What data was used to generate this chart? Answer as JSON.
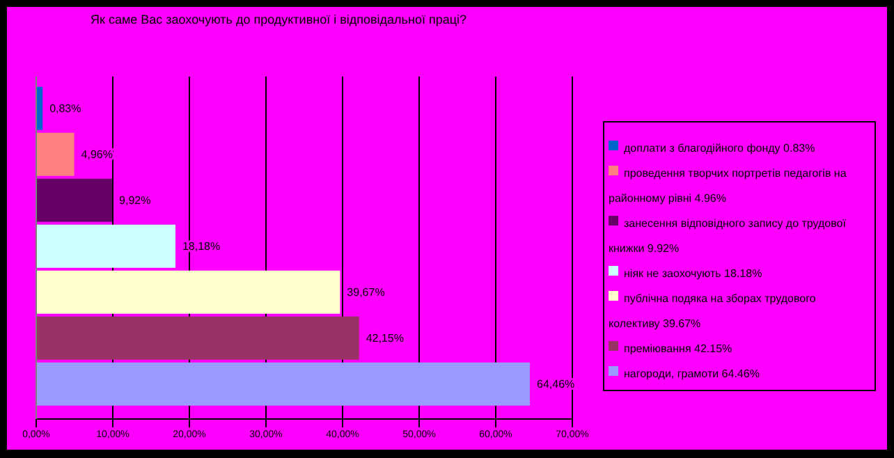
{
  "chart_data": {
    "type": "bar",
    "orientation": "horizontal",
    "title": "Як саме Вас заохочують до продуктивної і відповідальної праці?",
    "categories": [
      null
    ],
    "series": [
      {
        "name": "доплати з благодійного фонду 0.83%",
        "color": "#0066cc",
        "values": [
          0.83
        ],
        "value_labels": [
          "0,83%"
        ]
      },
      {
        "name": "проведення творчих портретів педагогів на районному рівні 4.96%",
        "color": "#ff8080",
        "values": [
          4.96
        ],
        "value_labels": [
          "4,96%"
        ]
      },
      {
        "name": "занесення відповідного запису до трудової книжки 9.92%",
        "color": "#660066",
        "values": [
          9.92
        ],
        "value_labels": [
          "9,92%"
        ]
      },
      {
        "name": "ніяк не заохочують 18.18%",
        "color": "#ccffff",
        "values": [
          18.18
        ],
        "value_labels": [
          "18,18%"
        ]
      },
      {
        "name": "публічна подяка на зборах трудового колективу 39.67%",
        "color": "#ffffcc",
        "values": [
          39.67
        ],
        "value_labels": [
          "39,67%"
        ]
      },
      {
        "name": "преміювання 42.15%",
        "color": "#993366",
        "values": [
          42.15
        ],
        "value_labels": [
          "42,15%"
        ]
      },
      {
        "name": "нагороди, грамоти 64.46%",
        "color": "#9999ff",
        "values": [
          64.46
        ],
        "value_labels": [
          "64,46%"
        ]
      }
    ],
    "xlim": [
      0,
      70
    ],
    "xticks": [
      {
        "value": 0,
        "label": "0,00%"
      },
      {
        "value": 10,
        "label": "10,00%"
      },
      {
        "value": 20,
        "label": "20,00%"
      },
      {
        "value": 30,
        "label": "30,00%"
      },
      {
        "value": 40,
        "label": "40,00%"
      },
      {
        "value": 50,
        "label": "50,00%"
      },
      {
        "value": 60,
        "label": "60,00%"
      },
      {
        "value": 70,
        "label": "70,00%"
      }
    ],
    "grid": "x",
    "legend": "right",
    "tick_labels": "x"
  }
}
